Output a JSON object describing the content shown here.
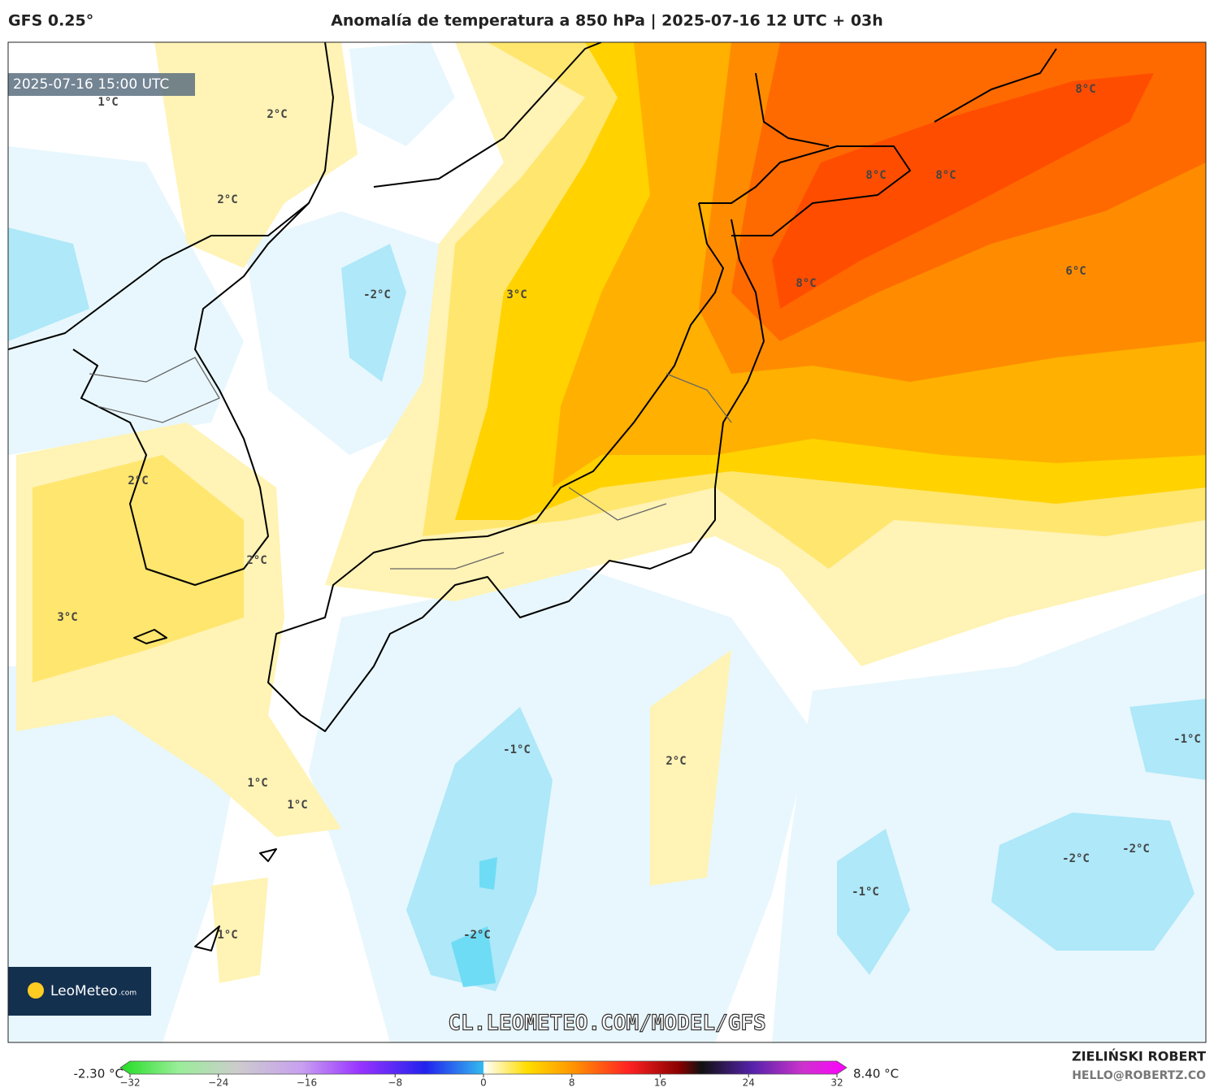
{
  "header": {
    "model": "GFS 0.25°",
    "title": "Anomalía de temperatura a 850 hPa | 2025-07-16 12 UTC + 03h"
  },
  "map": {
    "timestamp": "2025-07-16 15:00 UTC",
    "contour_labels": [
      "1°C",
      "2°C",
      "2°C",
      "-2°C",
      "3°C",
      "8°C",
      "8°C",
      "8°C",
      "8°C",
      "6°C",
      "2°C",
      "2°C",
      "3°C",
      "-1°C",
      "2°C",
      "-1°C",
      "1°C",
      "1°C",
      "-1°C",
      "-2°C",
      "-2°C",
      "-2°C",
      "1°C"
    ],
    "watermark": "CL.LEOMETEO.COM/MODEL/GFS",
    "logo": "LeoMeteo",
    "logo_suffix": ".com"
  },
  "colorbar": {
    "min_label": "-2.30 °C",
    "max_label": "8.40 °C",
    "range": [
      -32,
      32
    ],
    "ticks": [
      {
        "value": -32,
        "label": "−32"
      },
      {
        "value": -24,
        "label": "−24"
      },
      {
        "value": -16,
        "label": "−16"
      },
      {
        "value": -8,
        "label": "−8"
      },
      0,
      8,
      16,
      24,
      32
    ]
  },
  "footer": {
    "author": "ZIELIŃSKI ROBERT",
    "contact": "HELLO@ROBERTZ.CO"
  }
}
